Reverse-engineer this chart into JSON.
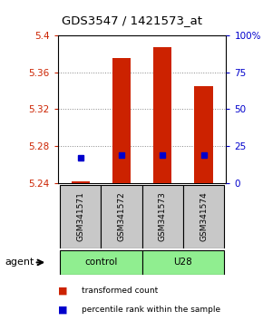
{
  "title": "GDS3547 / 1421573_at",
  "samples": [
    "GSM341571",
    "GSM341572",
    "GSM341573",
    "GSM341574"
  ],
  "red_values": [
    5.242,
    5.375,
    5.387,
    5.345
  ],
  "blue_values": [
    5.267,
    5.27,
    5.27,
    5.27
  ],
  "ylim_left": [
    5.24,
    5.4
  ],
  "ylim_right": [
    0,
    100
  ],
  "yticks_left": [
    5.24,
    5.28,
    5.32,
    5.36,
    5.4
  ],
  "yticks_right": [
    0,
    25,
    50,
    75,
    100
  ],
  "ytick_labels_right": [
    "0",
    "25",
    "50",
    "75",
    "100%"
  ],
  "group_label": "agent",
  "bar_color": "#CC2200",
  "dot_color": "#0000CC",
  "bar_width": 0.45,
  "grid_color": "#888888",
  "background_color": "#ffffff",
  "plot_bg": "#ffffff",
  "tick_color_left": "#CC2200",
  "tick_color_right": "#0000CC",
  "sample_box_color": "#C8C8C8",
  "group_box_color": "#90EE90"
}
